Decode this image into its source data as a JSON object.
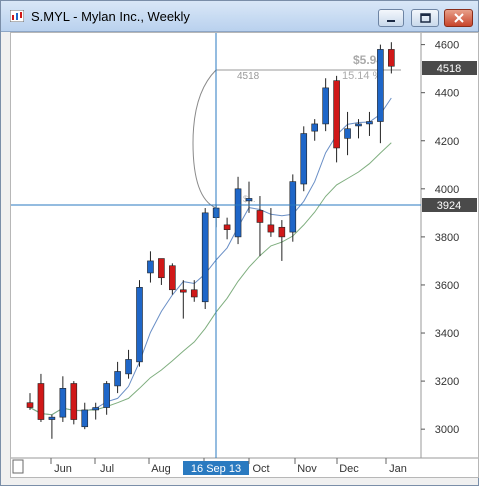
{
  "window": {
    "title": "S.MYL - Mylan Inc., Weekly",
    "buttons": {
      "minimize": "minimize",
      "maximize": "maximize",
      "close": "close"
    }
  },
  "colors": {
    "up": "#1e66c8",
    "down": "#d01818",
    "grid": "#e6e6e6",
    "crosshair": "#2a7ac0",
    "ma_short": "#6a8fc6",
    "ma_long": "#7fae7f"
  },
  "chart_data": {
    "type": "candlestick",
    "title": "S.MYL - Mylan Inc., Weekly",
    "ylim": [
      2880,
      4640
    ],
    "y_ticks": [
      3000,
      3200,
      3400,
      3600,
      3800,
      4000,
      4200,
      4400,
      4600
    ],
    "x_labels": [
      "Jun",
      "Jul",
      "Aug",
      "16 Sep 13",
      "Oct",
      "Nov",
      "Dec",
      "Jan"
    ],
    "current_price_label": "4518",
    "crosshair_price_label": "3924",
    "measure": {
      "start_label": "4518",
      "change_label": "$5.94",
      "percent_label": "15.14 %",
      "small_label": "$..."
    },
    "candles": [
      {
        "o": 3110,
        "h": 3150,
        "l": 3080,
        "c": 3090
      },
      {
        "o": 3190,
        "h": 3230,
        "l": 3030,
        "c": 3040
      },
      {
        "o": 3040,
        "h": 3060,
        "l": 2960,
        "c": 3050
      },
      {
        "o": 3050,
        "h": 3220,
        "l": 3030,
        "c": 3170
      },
      {
        "o": 3190,
        "h": 3200,
        "l": 3020,
        "c": 3040
      },
      {
        "o": 3010,
        "h": 3110,
        "l": 3000,
        "c": 3080
      },
      {
        "o": 3080,
        "h": 3110,
        "l": 3040,
        "c": 3090
      },
      {
        "o": 3090,
        "h": 3200,
        "l": 3060,
        "c": 3190
      },
      {
        "o": 3180,
        "h": 3280,
        "l": 3150,
        "c": 3240
      },
      {
        "o": 3230,
        "h": 3330,
        "l": 3210,
        "c": 3290
      },
      {
        "o": 3280,
        "h": 3620,
        "l": 3260,
        "c": 3590
      },
      {
        "o": 3650,
        "h": 3740,
        "l": 3610,
        "c": 3700
      },
      {
        "o": 3710,
        "h": 3710,
        "l": 3600,
        "c": 3630
      },
      {
        "o": 3680,
        "h": 3690,
        "l": 3560,
        "c": 3580
      },
      {
        "o": 3580,
        "h": 3620,
        "l": 3460,
        "c": 3570
      },
      {
        "o": 3580,
        "h": 3620,
        "l": 3530,
        "c": 3550
      },
      {
        "o": 3530,
        "h": 3920,
        "l": 3500,
        "c": 3900
      },
      {
        "o": 3880,
        "h": 3930,
        "l": 3840,
        "c": 3920
      },
      {
        "o": 3850,
        "h": 3880,
        "l": 3790,
        "c": 3830
      },
      {
        "o": 3800,
        "h": 4050,
        "l": 3770,
        "c": 4000
      },
      {
        "o": 3950,
        "h": 4030,
        "l": 3900,
        "c": 3960
      },
      {
        "o": 3910,
        "h": 3970,
        "l": 3720,
        "c": 3860
      },
      {
        "o": 3850,
        "h": 3920,
        "l": 3800,
        "c": 3820
      },
      {
        "o": 3840,
        "h": 3870,
        "l": 3700,
        "c": 3800
      },
      {
        "o": 3820,
        "h": 4060,
        "l": 3780,
        "c": 4030
      },
      {
        "o": 4020,
        "h": 4260,
        "l": 3990,
        "c": 4230
      },
      {
        "o": 4240,
        "h": 4290,
        "l": 4200,
        "c": 4270
      },
      {
        "o": 4270,
        "h": 4460,
        "l": 4240,
        "c": 4420
      },
      {
        "o": 4450,
        "h": 4470,
        "l": 4110,
        "c": 4170
      },
      {
        "o": 4210,
        "h": 4320,
        "l": 4140,
        "c": 4250
      },
      {
        "o": 4270,
        "h": 4290,
        "l": 4210,
        "c": 4270
      },
      {
        "o": 4270,
        "h": 4320,
        "l": 4220,
        "c": 4280
      },
      {
        "o": 4280,
        "h": 4600,
        "l": 4190,
        "c": 4580
      },
      {
        "o": 4580,
        "h": 4610,
        "l": 4480,
        "c": 4510
      }
    ]
  }
}
